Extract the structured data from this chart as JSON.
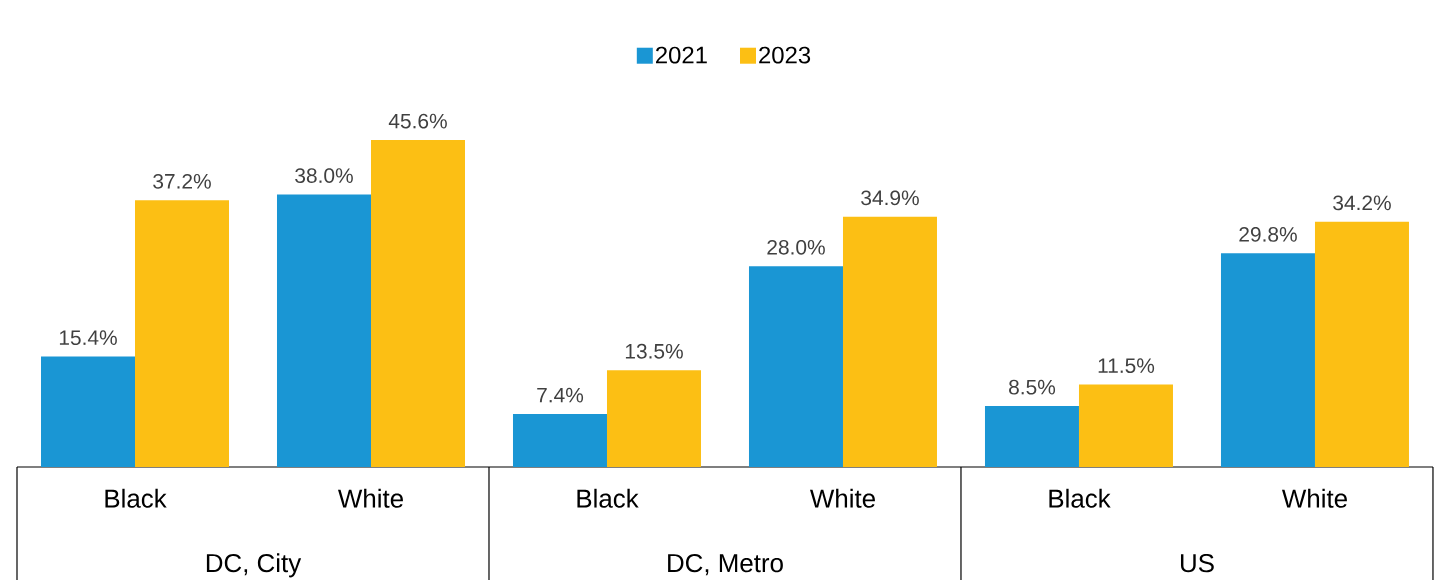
{
  "chart_data": {
    "type": "bar",
    "categories": [
      "Black",
      "White",
      "Black",
      "White",
      "Black",
      "White"
    ],
    "series": [
      {
        "name": "2021",
        "color": "#1a96d4",
        "values": [
          15.4,
          38.0,
          7.4,
          28.0,
          8.5,
          29.8
        ],
        "value_labels": [
          "15.4%",
          "38.0%",
          "7.4%",
          "28.0%",
          "8.5%",
          "29.8%"
        ]
      },
      {
        "name": "2023",
        "color": "#fcbf14",
        "values": [
          37.2,
          45.6,
          13.5,
          34.9,
          11.5,
          34.2
        ],
        "value_labels": [
          "37.2%",
          "45.6%",
          "13.5%",
          "34.9%",
          "11.5%",
          "34.2%"
        ]
      }
    ],
    "annotations": [
      "DC, City",
      "DC, Metro",
      "US"
    ],
    "legend": "top"
  }
}
